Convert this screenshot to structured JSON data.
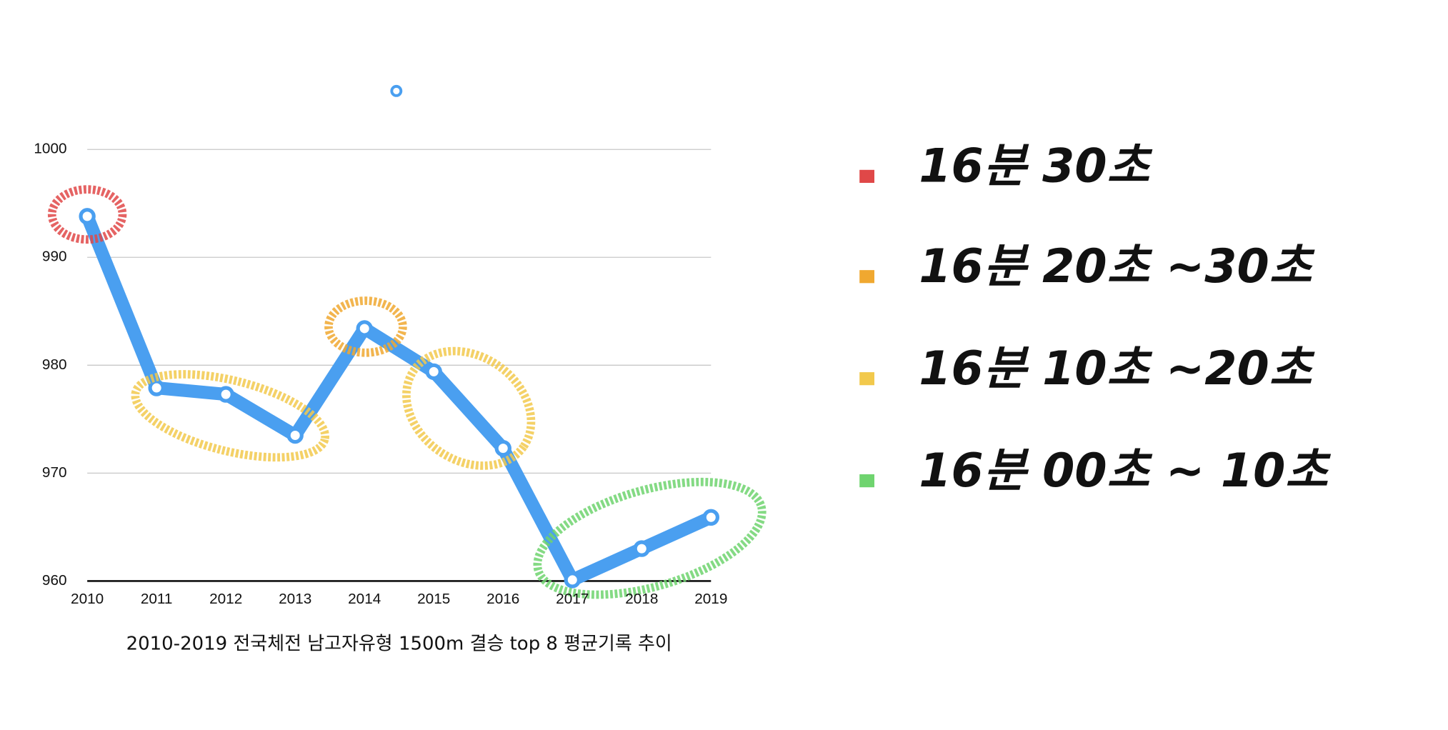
{
  "chart_data": {
    "type": "line",
    "caption": "2010-2019 전국체전 남고자유형 1500m 결승 top 8 평균기록 추이",
    "x": [
      2010,
      2011,
      2012,
      2013,
      2014,
      2015,
      2016,
      2017,
      2018,
      2019
    ],
    "xticks": [
      2010,
      2011,
      2012,
      2013,
      2014,
      2015,
      2016,
      2017,
      2018,
      2019
    ],
    "xlim": [
      2010,
      2019
    ],
    "values": [
      993.8,
      977.9,
      977.3,
      973.5,
      983.4,
      979.4,
      972.3,
      960.1,
      963.0,
      965.9
    ],
    "color": "#4a9ff0",
    "ylim": [
      960,
      1000
    ],
    "yticks": [
      960,
      970,
      980,
      990,
      1000
    ],
    "grid": true,
    "legend": [
      {
        "label": "16분 30초",
        "color": "#e04848"
      },
      {
        "label": "16분 20초 ~30초",
        "color": "#f0a830"
      },
      {
        "label": "16분 10초 ~20초",
        "color": "#f2c94c"
      },
      {
        "label": "16분 00초 ~ 10초",
        "color": "#6fd46f"
      }
    ]
  }
}
